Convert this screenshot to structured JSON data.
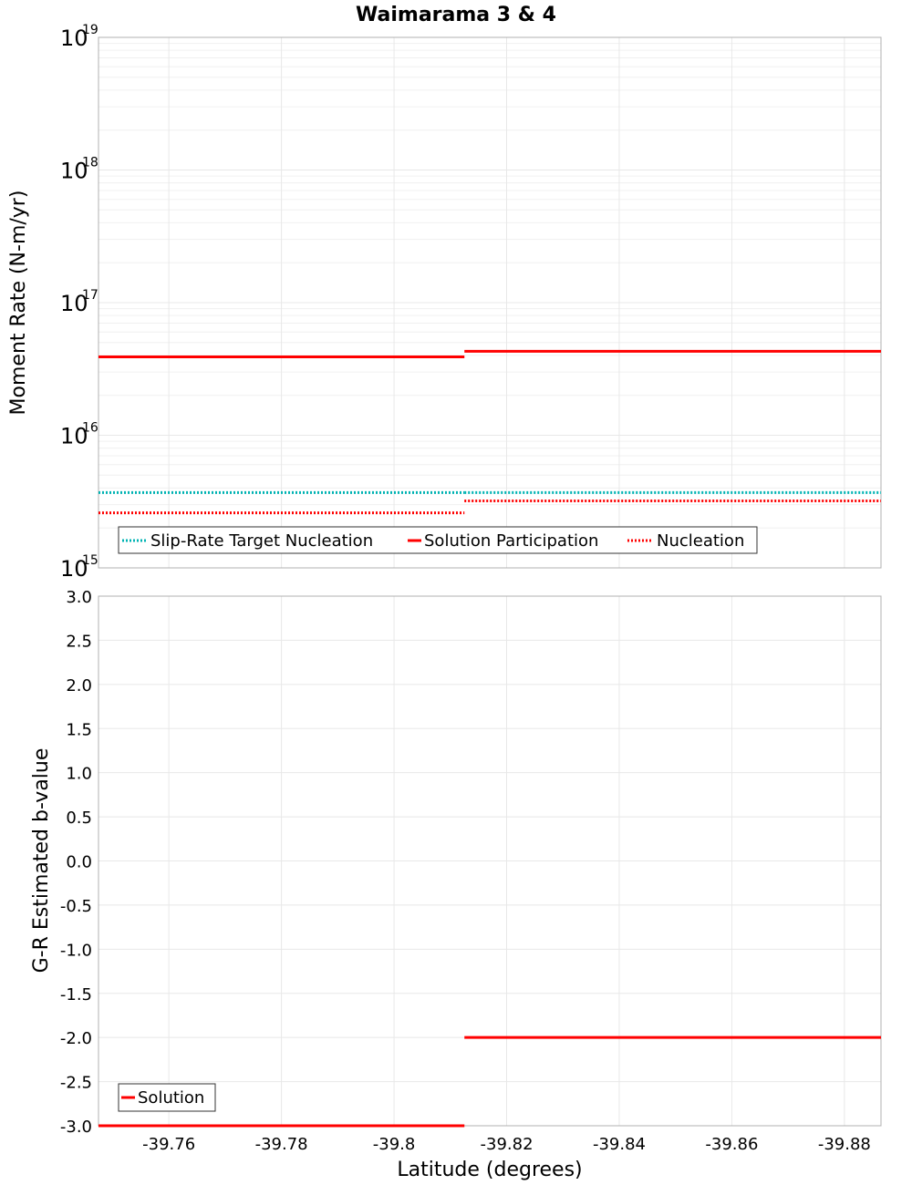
{
  "chart_data": [
    {
      "type": "line",
      "title": "Waimarama 3 & 4",
      "xlabel": "",
      "ylabel": "Moment Rate (N-m/yr)",
      "yscale": "log",
      "ylim": [
        1000000000000000.0,
        1e+19
      ],
      "xlim": [
        -39.7475,
        -39.8865
      ],
      "x_reversed": true,
      "y_ticks": [
        {
          "base": "10",
          "exp": "15",
          "value": 1000000000000000.0
        },
        {
          "base": "10",
          "exp": "16",
          "value": 1e+16
        },
        {
          "base": "10",
          "exp": "17",
          "value": 1e+17
        },
        {
          "base": "10",
          "exp": "18",
          "value": 1e+18
        },
        {
          "base": "10",
          "exp": "19",
          "value": 1e+19
        }
      ],
      "legend_position": "bottom-left",
      "series": [
        {
          "name": "Slip-Rate Target Nucleation",
          "style": "dotted",
          "color": "#00b3b3",
          "segments": [
            {
              "x": [
                -39.7475,
                -39.8125
              ],
              "y": 3700000000000000.0
            },
            {
              "x": [
                -39.8125,
                -39.8865
              ],
              "y": 3700000000000000.0
            }
          ]
        },
        {
          "name": "Solution Participation",
          "style": "solid",
          "color": "#ff0000",
          "segments": [
            {
              "x": [
                -39.7475,
                -39.8125
              ],
              "y": 3.9e+16
            },
            {
              "x": [
                -39.8125,
                -39.8865
              ],
              "y": 4.3e+16
            }
          ]
        },
        {
          "name": "Nucleation",
          "style": "dotted",
          "color": "#ff0000",
          "segments": [
            {
              "x": [
                -39.7475,
                -39.8125
              ],
              "y": 2600000000000000.0
            },
            {
              "x": [
                -39.8125,
                -39.8865
              ],
              "y": 3200000000000000.0
            }
          ]
        }
      ]
    },
    {
      "type": "line",
      "title": "",
      "xlabel": "Latitude (degrees)",
      "ylabel": "G-R Estimated b-value",
      "ylim": [
        -3.0,
        3.0
      ],
      "xlim": [
        -39.7475,
        -39.8865
      ],
      "x_reversed": true,
      "y_ticks": [
        "3.0",
        "2.5",
        "2.0",
        "1.5",
        "1.0",
        "0.5",
        "0.0",
        "-0.5",
        "-1.0",
        "-1.5",
        "-2.0",
        "-2.5",
        "-3.0"
      ],
      "x_ticks": [
        "-39.76",
        "-39.78",
        "-39.8",
        "-39.82",
        "-39.84",
        "-39.86",
        "-39.88"
      ],
      "legend_position": "bottom-left",
      "series": [
        {
          "name": "Solution",
          "style": "solid",
          "color": "#ff0000",
          "segments": [
            {
              "x": [
                -39.7475,
                -39.8125
              ],
              "y": -3.0
            },
            {
              "x": [
                -39.8125,
                -39.8865
              ],
              "y": -2.0
            }
          ]
        }
      ]
    }
  ]
}
